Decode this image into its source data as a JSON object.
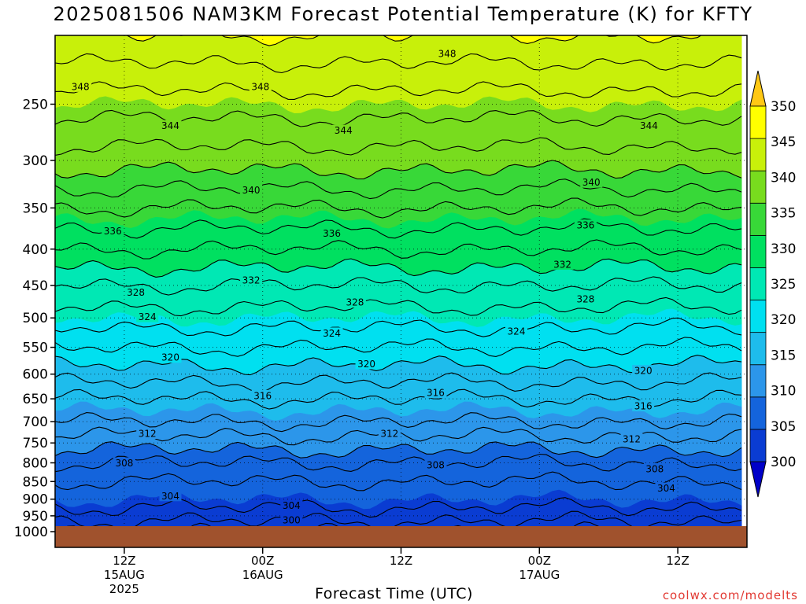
{
  "header": {
    "title": "2025081506 NAM3KM Forecast Potential Temperature (K) for KFTY"
  },
  "footer": {
    "xlabel": "Forecast Time (UTC)",
    "credit": "coolwx.com/modelts"
  },
  "chart_data": {
    "type": "heatmap",
    "title": "2025081506 NAM3KM Forecast Potential Temperature (K) for KFTY",
    "xlabel": "Forecast Time (UTC)",
    "ylabel": "",
    "y_axis": {
      "scale": "log-pressure",
      "direction": "inverted",
      "range_hpa": [
        1000,
        200
      ],
      "ticks": [
        250,
        300,
        350,
        400,
        450,
        500,
        550,
        600,
        650,
        700,
        750,
        800,
        850,
        900,
        950,
        1000
      ]
    },
    "x_axis": {
      "range_hours_from_init": [
        0,
        60
      ],
      "ticks": [
        {
          "hour": 6,
          "lines": [
            "12Z",
            "15AUG",
            "2025"
          ]
        },
        {
          "hour": 18,
          "lines": [
            "00Z",
            "16AUG"
          ]
        },
        {
          "hour": 30,
          "lines": [
            "12Z"
          ]
        },
        {
          "hour": 42,
          "lines": [
            "00Z",
            "17AUG"
          ]
        },
        {
          "hour": 54,
          "lines": [
            "12Z"
          ]
        }
      ]
    },
    "grid": "dotted",
    "colorbar": {
      "placement": "right",
      "ticks": [
        300,
        305,
        310,
        315,
        320,
        325,
        330,
        335,
        340,
        345,
        350
      ],
      "colors": [
        "#0000c8",
        "#0a3cd2",
        "#1464dc",
        "#2c96ea",
        "#1ebcec",
        "#00e0f0",
        "#00e8b4",
        "#00e060",
        "#38d838",
        "#78dc1e",
        "#c8f00a",
        "#ffff00",
        "#ffc814"
      ]
    },
    "contour_interval_K": 4,
    "profile": [
      {
        "pressure_hpa": 1000,
        "theta_K": 300
      },
      {
        "pressure_hpa": 950,
        "theta_K": 303
      },
      {
        "pressure_hpa": 900,
        "theta_K": 305
      },
      {
        "pressure_hpa": 850,
        "theta_K": 306
      },
      {
        "pressure_hpa": 800,
        "theta_K": 308
      },
      {
        "pressure_hpa": 750,
        "theta_K": 311
      },
      {
        "pressure_hpa": 700,
        "theta_K": 314
      },
      {
        "pressure_hpa": 650,
        "theta_K": 316
      },
      {
        "pressure_hpa": 600,
        "theta_K": 319
      },
      {
        "pressure_hpa": 550,
        "theta_K": 322
      },
      {
        "pressure_hpa": 500,
        "theta_K": 325
      },
      {
        "pressure_hpa": 450,
        "theta_K": 328
      },
      {
        "pressure_hpa": 400,
        "theta_K": 332
      },
      {
        "pressure_hpa": 350,
        "theta_K": 336
      },
      {
        "pressure_hpa": 300,
        "theta_K": 341
      },
      {
        "pressure_hpa": 250,
        "theta_K": 345
      },
      {
        "pressure_hpa": 200,
        "theta_K": 350
      }
    ],
    "contour_labels": [
      {
        "value": "348",
        "hour": 2.2,
        "pressure_hpa": 236
      },
      {
        "value": "348",
        "hour": 17.8,
        "pressure_hpa": 236
      },
      {
        "value": "348",
        "hour": 34.0,
        "pressure_hpa": 212
      },
      {
        "value": "344",
        "hour": 10.0,
        "pressure_hpa": 268
      },
      {
        "value": "344",
        "hour": 25.0,
        "pressure_hpa": 272
      },
      {
        "value": "344",
        "hour": 51.5,
        "pressure_hpa": 268
      },
      {
        "value": "340",
        "hour": 17.0,
        "pressure_hpa": 330
      },
      {
        "value": "340",
        "hour": 46.5,
        "pressure_hpa": 322
      },
      {
        "value": "336",
        "hour": 5.0,
        "pressure_hpa": 377
      },
      {
        "value": "336",
        "hour": 24.0,
        "pressure_hpa": 380
      },
      {
        "value": "336",
        "hour": 46.0,
        "pressure_hpa": 370
      },
      {
        "value": "332",
        "hour": 17.0,
        "pressure_hpa": 442
      },
      {
        "value": "332",
        "hour": 44.0,
        "pressure_hpa": 420
      },
      {
        "value": "328",
        "hour": 7.0,
        "pressure_hpa": 460
      },
      {
        "value": "328",
        "hour": 26.0,
        "pressure_hpa": 475
      },
      {
        "value": "328",
        "hour": 46.0,
        "pressure_hpa": 470
      },
      {
        "value": "324",
        "hour": 8.0,
        "pressure_hpa": 498
      },
      {
        "value": "324",
        "hour": 24.0,
        "pressure_hpa": 525
      },
      {
        "value": "324",
        "hour": 40.0,
        "pressure_hpa": 522
      },
      {
        "value": "320",
        "hour": 10.0,
        "pressure_hpa": 568
      },
      {
        "value": "320",
        "hour": 27.0,
        "pressure_hpa": 580
      },
      {
        "value": "320",
        "hour": 51.0,
        "pressure_hpa": 593
      },
      {
        "value": "316",
        "hour": 18.0,
        "pressure_hpa": 643
      },
      {
        "value": "316",
        "hour": 33.0,
        "pressure_hpa": 637
      },
      {
        "value": "316",
        "hour": 51.0,
        "pressure_hpa": 665
      },
      {
        "value": "312",
        "hour": 8.0,
        "pressure_hpa": 727
      },
      {
        "value": "312",
        "hour": 29.0,
        "pressure_hpa": 727
      },
      {
        "value": "312",
        "hour": 50.0,
        "pressure_hpa": 740
      },
      {
        "value": "308",
        "hour": 6.0,
        "pressure_hpa": 800
      },
      {
        "value": "308",
        "hour": 33.0,
        "pressure_hpa": 805
      },
      {
        "value": "308",
        "hour": 52.0,
        "pressure_hpa": 815
      },
      {
        "value": "304",
        "hour": 10.0,
        "pressure_hpa": 890
      },
      {
        "value": "304",
        "hour": 20.5,
        "pressure_hpa": 918
      },
      {
        "value": "304",
        "hour": 53.0,
        "pressure_hpa": 868
      },
      {
        "value": "300",
        "hour": 20.5,
        "pressure_hpa": 962
      }
    ]
  }
}
